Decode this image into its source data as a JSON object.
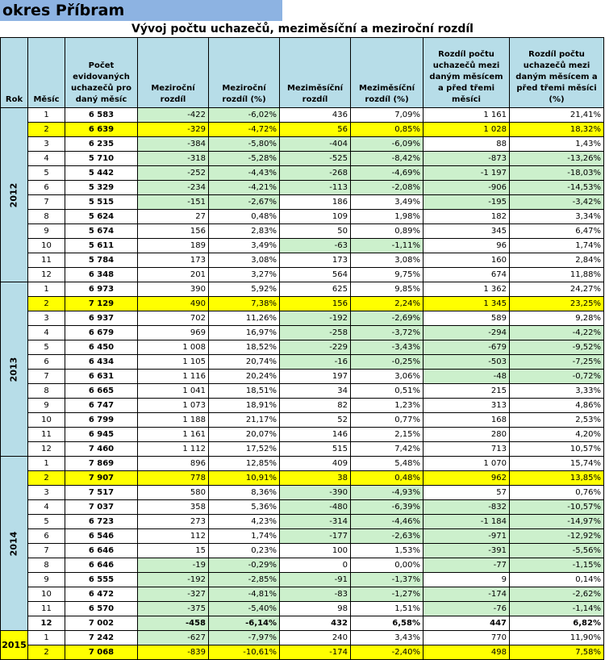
{
  "region_title": "okres Příbram",
  "table_title": "Vývoj počtu uchazečů, meziměsíční a meziroční rozdíl",
  "headers": {
    "rok": "Rok",
    "mesic": "Měsíc",
    "pocet": "Počet evidovaných uchazečů pro daný měsíc",
    "mezirocni": "Meziroční rozdíl",
    "mezirocni_pct": "Meziroční rozdíl (%)",
    "mezimesicni": "Meziměsíční rozdíl",
    "mezimesicni_pct": "Meziměsíční rozdíl (%)",
    "rozdil3": "Rozdíl počtu uchazečů mezi daným měsícem a před třemi měsíci",
    "rozdil3_pct": "Rozdíl počtu uchazečů mezi daným měsícem a před třemi měsíci (%)"
  },
  "years": [
    {
      "year": "2012",
      "rows": [
        [
          "1",
          "6 583",
          "-422",
          "-6,02%",
          "436",
          "7,09%",
          "1 161",
          "21,41%"
        ],
        [
          "2",
          "6 639",
          "-329",
          "-4,72%",
          "56",
          "0,85%",
          "1 028",
          "18,32%"
        ],
        [
          "3",
          "6 235",
          "-384",
          "-5,80%",
          "-404",
          "-6,09%",
          "88",
          "1,43%"
        ],
        [
          "4",
          "5 710",
          "-318",
          "-5,28%",
          "-525",
          "-8,42%",
          "-873",
          "-13,26%"
        ],
        [
          "5",
          "5 442",
          "-252",
          "-4,43%",
          "-268",
          "-4,69%",
          "-1 197",
          "-18,03%"
        ],
        [
          "6",
          "5 329",
          "-234",
          "-4,21%",
          "-113",
          "-2,08%",
          "-906",
          "-14,53%"
        ],
        [
          "7",
          "5 515",
          "-151",
          "-2,67%",
          "186",
          "3,49%",
          "-195",
          "-3,42%"
        ],
        [
          "8",
          "5 624",
          "27",
          "0,48%",
          "109",
          "1,98%",
          "182",
          "3,34%"
        ],
        [
          "9",
          "5 674",
          "156",
          "2,83%",
          "50",
          "0,89%",
          "345",
          "6,47%"
        ],
        [
          "10",
          "5 611",
          "189",
          "3,49%",
          "-63",
          "-1,11%",
          "96",
          "1,74%"
        ],
        [
          "11",
          "5 784",
          "173",
          "3,08%",
          "173",
          "3,08%",
          "160",
          "2,84%"
        ],
        [
          "12",
          "6 348",
          "201",
          "3,27%",
          "564",
          "9,75%",
          "674",
          "11,88%"
        ]
      ]
    },
    {
      "year": "2013",
      "rows": [
        [
          "1",
          "6 973",
          "390",
          "5,92%",
          "625",
          "9,85%",
          "1 362",
          "24,27%"
        ],
        [
          "2",
          "7 129",
          "490",
          "7,38%",
          "156",
          "2,24%",
          "1 345",
          "23,25%"
        ],
        [
          "3",
          "6 937",
          "702",
          "11,26%",
          "-192",
          "-2,69%",
          "589",
          "9,28%"
        ],
        [
          "4",
          "6 679",
          "969",
          "16,97%",
          "-258",
          "-3,72%",
          "-294",
          "-4,22%"
        ],
        [
          "5",
          "6 450",
          "1 008",
          "18,52%",
          "-229",
          "-3,43%",
          "-679",
          "-9,52%"
        ],
        [
          "6",
          "6 434",
          "1 105",
          "20,74%",
          "-16",
          "-0,25%",
          "-503",
          "-7,25%"
        ],
        [
          "7",
          "6 631",
          "1 116",
          "20,24%",
          "197",
          "3,06%",
          "-48",
          "-0,72%"
        ],
        [
          "8",
          "6 665",
          "1 041",
          "18,51%",
          "34",
          "0,51%",
          "215",
          "3,33%"
        ],
        [
          "9",
          "6 747",
          "1 073",
          "18,91%",
          "82",
          "1,23%",
          "313",
          "4,86%"
        ],
        [
          "10",
          "6 799",
          "1 188",
          "21,17%",
          "52",
          "0,77%",
          "168",
          "2,53%"
        ],
        [
          "11",
          "6 945",
          "1 161",
          "20,07%",
          "146",
          "2,15%",
          "280",
          "4,20%"
        ],
        [
          "12",
          "7 460",
          "1 112",
          "17,52%",
          "515",
          "7,42%",
          "713",
          "10,57%"
        ]
      ]
    },
    {
      "year": "2014",
      "rows": [
        [
          "1",
          "7 869",
          "896",
          "12,85%",
          "409",
          "5,48%",
          "1 070",
          "15,74%"
        ],
        [
          "2",
          "7 907",
          "778",
          "10,91%",
          "38",
          "0,48%",
          "962",
          "13,85%"
        ],
        [
          "3",
          "7 517",
          "580",
          "8,36%",
          "-390",
          "-4,93%",
          "57",
          "0,76%"
        ],
        [
          "4",
          "7 037",
          "358",
          "5,36%",
          "-480",
          "-6,39%",
          "-832",
          "-10,57%"
        ],
        [
          "5",
          "6 723",
          "273",
          "4,23%",
          "-314",
          "-4,46%",
          "-1 184",
          "-14,97%"
        ],
        [
          "6",
          "6 546",
          "112",
          "1,74%",
          "-177",
          "-2,63%",
          "-971",
          "-12,92%"
        ],
        [
          "7",
          "6 646",
          "15",
          "0,23%",
          "100",
          "1,53%",
          "-391",
          "-5,56%"
        ],
        [
          "8",
          "6 646",
          "-19",
          "-0,29%",
          "0",
          "0,00%",
          "-77",
          "-1,15%"
        ],
        [
          "9",
          "6 555",
          "-192",
          "-2,85%",
          "-91",
          "-1,37%",
          "9",
          "0,14%"
        ],
        [
          "10",
          "6 472",
          "-327",
          "-4,81%",
          "-83",
          "-1,27%",
          "-174",
          "-2,62%"
        ],
        [
          "11",
          "6 570",
          "-375",
          "-5,40%",
          "98",
          "1,51%",
          "-76",
          "-1,14%"
        ],
        [
          "12",
          "7 002",
          "-458",
          "-6,14%",
          "432",
          "6,58%",
          "447",
          "6,82%"
        ]
      ]
    },
    {
      "year": "2015",
      "rows": [
        [
          "1",
          "7 242",
          "-627",
          "-7,97%",
          "240",
          "3,43%",
          "770",
          "11,90%"
        ],
        [
          "2",
          "7 068",
          "-839",
          "-10,61%",
          "-174",
          "-2,40%",
          "498",
          "7,58%"
        ]
      ]
    }
  ],
  "colors": {
    "header_bg": "#b7dde8",
    "highlight": "#ffff00",
    "negative_bg": "#ccf0cc",
    "title_bg": "#8db3e2"
  }
}
